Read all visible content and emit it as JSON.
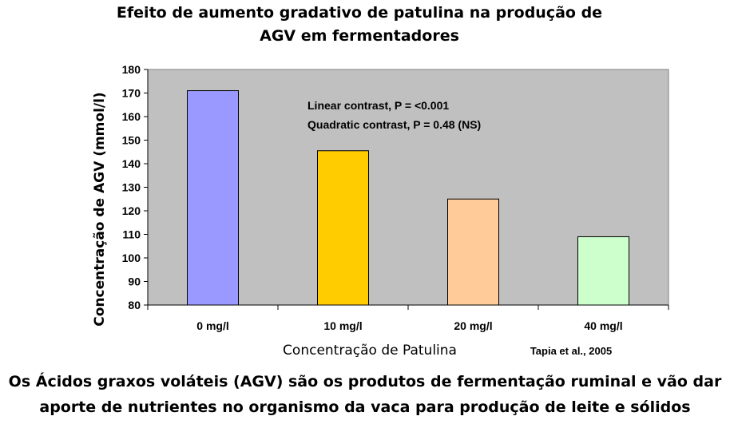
{
  "title_line1": "Efeito de aumento gradativo de patulina na produção de",
  "title_line2": "AGV em fermentadores",
  "caption_line1": "Os Ácidos graxos voláteis (AGV) são os produtos de fermentação ruminal e vão dar",
  "caption_line2": "aporte de nutrientes no organismo da vaca para produção de leite e sólidos",
  "chart_data": {
    "type": "bar",
    "categories": [
      "0 mg/l",
      "10 mg/l",
      "20 mg/l",
      "40 mg/l"
    ],
    "values": [
      171,
      145.5,
      125,
      109
    ],
    "colors": [
      "#9999ff",
      "#ffcc00",
      "#ffcc99",
      "#ccffcc"
    ],
    "xlabel": "Concentração de Patulina",
    "ylabel": "Concentração de AGV (mmol/l)",
    "ylim": [
      80,
      180
    ],
    "yticks": [
      80,
      90,
      100,
      110,
      120,
      130,
      140,
      150,
      160,
      170,
      180
    ],
    "annotation_line1": "Linear contrast, P = <0.001",
    "annotation_line2": "Quadratic contrast, P = 0.48 (NS)",
    "source": "Tapia et al., 2005",
    "plot_background": "#c0c0c0",
    "grid": false,
    "legend": false
  }
}
